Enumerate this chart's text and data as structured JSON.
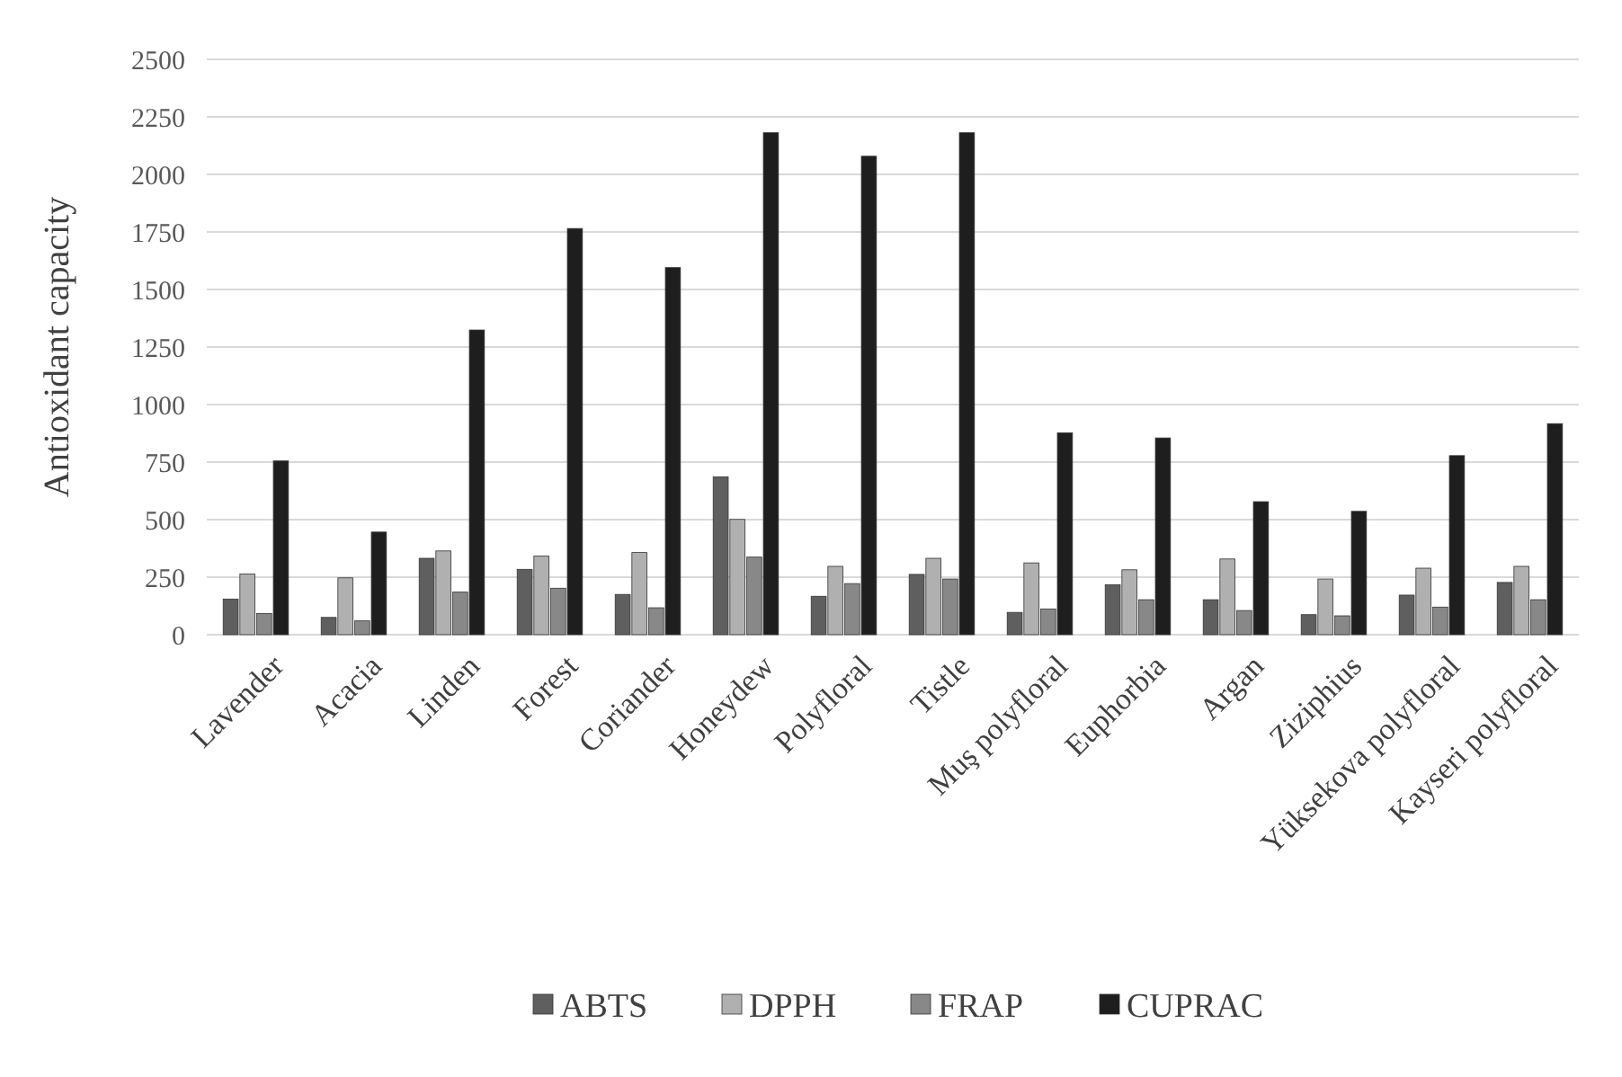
{
  "chart_data": {
    "type": "bar",
    "ylabel": "Antioxidant capacity",
    "categories": [
      "Lavender",
      "Acacia",
      "Linden",
      "Forest",
      "Coriander",
      "Honeydew",
      "Polyfloral",
      "Tistle",
      "Muş polyfloral",
      "Euphorbia",
      "Argan",
      "Ziziphius",
      "Yüksekova polyfloral",
      "Kayseri polyfloral"
    ],
    "series": [
      {
        "name": "ABTS",
        "color": "#5f5f5f",
        "values": [
          155,
          75,
          332,
          284,
          175,
          686,
          167,
          262,
          97,
          217,
          152,
          87,
          172,
          227
        ]
      },
      {
        "name": "DPPH",
        "color": "#b0b0b0",
        "values": [
          264,
          247,
          364,
          342,
          357,
          501,
          297,
          332,
          312,
          282,
          329,
          242,
          289,
          297
        ]
      },
      {
        "name": "FRAP",
        "color": "#888888",
        "values": [
          92,
          60,
          185,
          202,
          117,
          337,
          222,
          242,
          112,
          152,
          105,
          82,
          120,
          152
        ]
      },
      {
        "name": "CUPRAC",
        "color": "#1e1e1e",
        "values": [
          755,
          446,
          1324,
          1765,
          1595,
          2181,
          2079,
          2181,
          877,
          855,
          578,
          536,
          778,
          917
        ]
      }
    ],
    "ylim": [
      0,
      2500
    ],
    "yticks": [
      0,
      250,
      500,
      750,
      1000,
      1250,
      1500,
      1750,
      2000,
      2250,
      2500
    ],
    "grid": "y",
    "legend": "bottom"
  }
}
